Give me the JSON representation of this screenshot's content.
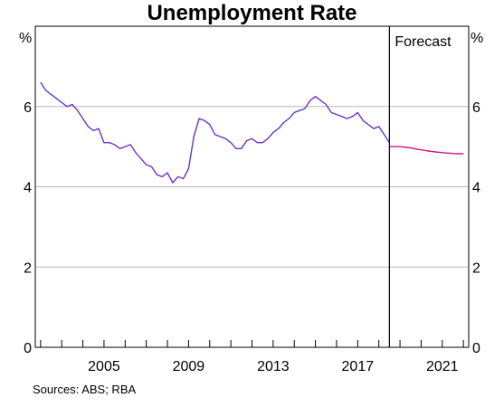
{
  "chart_data": {
    "type": "line",
    "title": "Unemployment Rate",
    "y_unit_left": "%",
    "y_unit_right": "%",
    "ylim": [
      0,
      8
    ],
    "y_ticks": [
      0,
      2,
      4,
      6
    ],
    "x_range": [
      2001.75,
      2022.25
    ],
    "x_tick_labels": [
      "2005",
      "2009",
      "2013",
      "2017",
      "2021"
    ],
    "x_tick_values": [
      2005,
      2009,
      2013,
      2017,
      2021
    ],
    "grid": true,
    "forecast_start": 2018.5,
    "forecast_label": "Forecast",
    "source": "Sources:   ABS; RBA",
    "colors": {
      "actual": "#6a35c8",
      "forecast": "#d6147a",
      "grid": "#b8b8b8",
      "axis": "#000000"
    },
    "series": [
      {
        "key": "actual",
        "x": [
          2002.0,
          2002.25,
          2002.5,
          2002.75,
          2003.0,
          2003.25,
          2003.5,
          2003.75,
          2004.0,
          2004.25,
          2004.5,
          2004.75,
          2005.0,
          2005.25,
          2005.5,
          2005.75,
          2006.0,
          2006.25,
          2006.5,
          2006.75,
          2007.0,
          2007.25,
          2007.5,
          2007.75,
          2008.0,
          2008.25,
          2008.5,
          2008.75,
          2009.0,
          2009.25,
          2009.5,
          2009.75,
          2010.0,
          2010.25,
          2010.5,
          2010.75,
          2011.0,
          2011.25,
          2011.5,
          2011.75,
          2012.0,
          2012.25,
          2012.5,
          2012.75,
          2013.0,
          2013.25,
          2013.5,
          2013.75,
          2014.0,
          2014.25,
          2014.5,
          2014.75,
          2015.0,
          2015.25,
          2015.5,
          2015.75,
          2016.0,
          2016.25,
          2016.5,
          2016.75,
          2017.0,
          2017.25,
          2017.5,
          2017.75,
          2018.0,
          2018.25,
          2018.5
        ],
        "y": [
          6.6,
          6.4,
          6.3,
          6.2,
          6.1,
          6.0,
          6.05,
          5.9,
          5.7,
          5.5,
          5.4,
          5.45,
          5.1,
          5.1,
          5.05,
          4.95,
          5.0,
          5.05,
          4.85,
          4.7,
          4.55,
          4.5,
          4.3,
          4.25,
          4.35,
          4.1,
          4.25,
          4.2,
          4.45,
          5.25,
          5.7,
          5.65,
          5.55,
          5.3,
          5.25,
          5.2,
          5.1,
          4.95,
          4.95,
          5.15,
          5.2,
          5.1,
          5.1,
          5.2,
          5.35,
          5.45,
          5.6,
          5.7,
          5.85,
          5.9,
          5.95,
          6.15,
          6.25,
          6.15,
          6.05,
          5.85,
          5.8,
          5.75,
          5.7,
          5.75,
          5.85,
          5.65,
          5.55,
          5.45,
          5.5,
          5.3,
          5.1
        ]
      },
      {
        "key": "forecast",
        "x": [
          2018.5,
          2019.0,
          2019.5,
          2020.0,
          2020.5,
          2021.0,
          2021.5,
          2022.0
        ],
        "y": [
          5.0,
          5.0,
          4.97,
          4.92,
          4.88,
          4.85,
          4.83,
          4.82
        ]
      }
    ]
  }
}
